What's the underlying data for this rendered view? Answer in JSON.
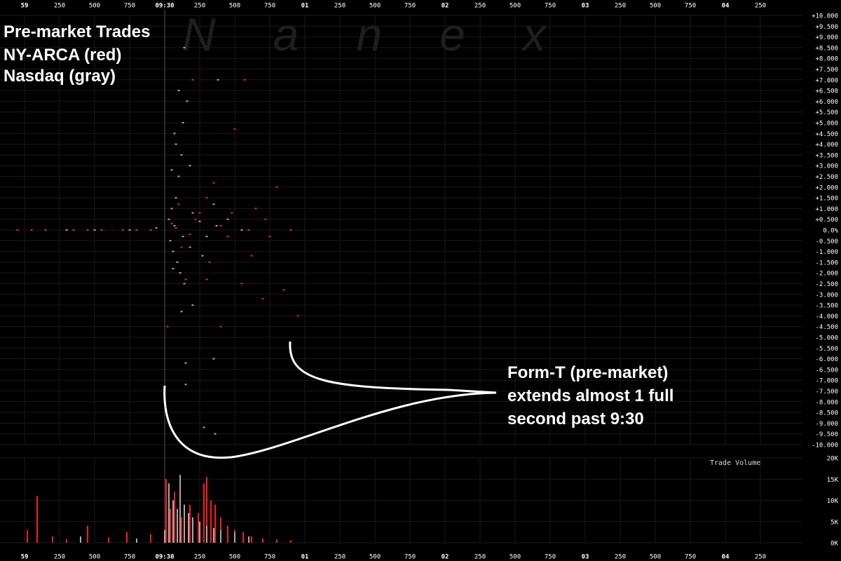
{
  "chart_data": [
    {
      "type": "scatter",
      "title": "Pre-market Trades",
      "watermark": "Nanex",
      "annotation": [
        "Form-T (pre-market)",
        "extends almost 1 full",
        "second past 9:30"
      ],
      "grid": true,
      "xlim": [
        -1.175,
        4.55
      ],
      "xticks": [
        {
          "value": -1,
          "label": "59"
        },
        {
          "value": -0.75,
          "label": "250"
        },
        {
          "value": -0.5,
          "label": "500"
        },
        {
          "value": -0.25,
          "label": "750"
        },
        {
          "value": 0,
          "label": "09:30"
        },
        {
          "value": 0.25,
          "label": "250"
        },
        {
          "value": 0.5,
          "label": "500"
        },
        {
          "value": 0.75,
          "label": "750"
        },
        {
          "value": 1,
          "label": "01"
        },
        {
          "value": 1.25,
          "label": "250"
        },
        {
          "value": 1.5,
          "label": "500"
        },
        {
          "value": 1.75,
          "label": "750"
        },
        {
          "value": 2,
          "label": "02"
        },
        {
          "value": 2.25,
          "label": "250"
        },
        {
          "value": 2.5,
          "label": "500"
        },
        {
          "value": 2.75,
          "label": "750"
        },
        {
          "value": 3,
          "label": "03"
        },
        {
          "value": 3.25,
          "label": "250"
        },
        {
          "value": 3.5,
          "label": "500"
        },
        {
          "value": 3.75,
          "label": "750"
        },
        {
          "value": 4,
          "label": "04"
        },
        {
          "value": 4.25,
          "label": "250"
        }
      ],
      "ylim": [
        -10,
        10
      ],
      "yticks": [
        {
          "value": 10,
          "label": "+10.000"
        },
        {
          "value": 9.5,
          "label": "+9.500"
        },
        {
          "value": 9,
          "label": "+9.000"
        },
        {
          "value": 8.5,
          "label": "+8.500"
        },
        {
          "value": 8,
          "label": "+8.000"
        },
        {
          "value": 7.5,
          "label": "+7.500"
        },
        {
          "value": 7,
          "label": "+7.000"
        },
        {
          "value": 6.5,
          "label": "+6.500"
        },
        {
          "value": 6,
          "label": "+6.000"
        },
        {
          "value": 5.5,
          "label": "+5.500"
        },
        {
          "value": 5,
          "label": "+5.000"
        },
        {
          "value": 4.5,
          "label": "+4.500"
        },
        {
          "value": 4,
          "label": "+4.000"
        },
        {
          "value": 3.5,
          "label": "+3.500"
        },
        {
          "value": 3,
          "label": "+3.000"
        },
        {
          "value": 2.5,
          "label": "+2.500"
        },
        {
          "value": 2,
          "label": "+2.000"
        },
        {
          "value": 1.5,
          "label": "+1.500"
        },
        {
          "value": 1,
          "label": "+1.000"
        },
        {
          "value": 0.5,
          "label": "+0.500"
        },
        {
          "value": 0,
          "label": "0.0%"
        },
        {
          "value": -0.5,
          "label": "-0.500"
        },
        {
          "value": -1,
          "label": "-1.000"
        },
        {
          "value": -1.5,
          "label": "-1.500"
        },
        {
          "value": -2,
          "label": "-2.000"
        },
        {
          "value": -2.5,
          "label": "-2.500"
        },
        {
          "value": -3,
          "label": "-3.000"
        },
        {
          "value": -3.5,
          "label": "-3.500"
        },
        {
          "value": -4,
          "label": "-4.000"
        },
        {
          "value": -4.5,
          "label": "-4.500"
        },
        {
          "value": -5,
          "label": "-5.000"
        },
        {
          "value": -5.5,
          "label": "-5.500"
        },
        {
          "value": -6,
          "label": "-6.000"
        },
        {
          "value": -6.5,
          "label": "-6.500"
        },
        {
          "value": -7,
          "label": "-7.000"
        },
        {
          "value": -7.5,
          "label": "-7.500"
        },
        {
          "value": -8,
          "label": "-8.000"
        },
        {
          "value": -8.5,
          "label": "-8.500"
        },
        {
          "value": -9,
          "label": "-9.000"
        },
        {
          "value": -9.5,
          "label": "-9.500"
        },
        {
          "value": -10,
          "label": "-10.000"
        }
      ],
      "series": [
        {
          "name": "NY-ARCA (red)",
          "color": "#ff1a1a",
          "x": [
            -1.05,
            -0.95,
            -0.85,
            -0.65,
            -0.55,
            -0.45,
            -0.3,
            -0.2,
            -0.1,
            0.02,
            0.05,
            0.08,
            0.1,
            0.12,
            0.15,
            0.18,
            0.2,
            0.22,
            0.25,
            0.3,
            0.3,
            0.32,
            0.35,
            0.4,
            0.4,
            0.45,
            0.48,
            0.5,
            0.55,
            0.57,
            0.6,
            0.62,
            0.65,
            0.7,
            0.72,
            0.75,
            0.8,
            0.85,
            0.9,
            0.95
          ],
          "values": [
            0,
            0,
            0,
            0,
            0,
            0,
            0,
            0,
            0,
            -4.5,
            0.3,
            0.1,
            1.2,
            -0.8,
            -2.3,
            -0.2,
            7,
            0.5,
            0.8,
            1.5,
            -2.3,
            -1.5,
            2.2,
            0.2,
            -4.5,
            -0.3,
            0.8,
            4.7,
            -2.5,
            7,
            0,
            -1.2,
            1,
            -3.2,
            0.5,
            -0.3,
            2,
            -2.8,
            0,
            -4
          ]
        },
        {
          "name": "Nasdaq (gray)",
          "color": "#a8a8a8",
          "x": [
            -0.7,
            -0.5,
            -0.25,
            -0.06,
            0.03,
            0.04,
            0.05,
            0.05,
            0.06,
            0.06,
            0.07,
            0.07,
            0.08,
            0.08,
            0.09,
            0.1,
            0.1,
            0.11,
            0.12,
            0.12,
            0.13,
            0.13,
            0.14,
            0.14,
            0.15,
            0.15,
            0.16,
            0.18,
            0.18,
            0.2,
            0.2,
            0.25,
            0.27,
            0.28,
            0.3,
            0.35,
            0.35,
            0.36,
            0.37,
            0.38,
            0.45,
            0.55
          ],
          "values": [
            0,
            0,
            0,
            0.1,
            0.5,
            -0.5,
            1,
            2.8,
            -1,
            -1.8,
            0.2,
            4.5,
            1.5,
            4,
            -1.5,
            2.5,
            6.5,
            -2,
            3.5,
            -3.8,
            -0.3,
            5,
            8.5,
            -2.5,
            -7.2,
            -6.2,
            6,
            3,
            -0.8,
            0.8,
            -3.5,
            0.4,
            -1.2,
            -9.2,
            -0.3,
            1.2,
            -6,
            -9.5,
            0.2,
            7,
            0.5,
            0
          ]
        }
      ]
    },
    {
      "type": "bar",
      "y_label": "Trade Volume",
      "grid": true,
      "xlim": [
        -1.175,
        4.55
      ],
      "xticks": [
        {
          "value": -1,
          "label": "59"
        },
        {
          "value": -0.75,
          "label": "250"
        },
        {
          "value": -0.5,
          "label": "500"
        },
        {
          "value": -0.25,
          "label": "750"
        },
        {
          "value": 0,
          "label": "09:30"
        },
        {
          "value": 0.25,
          "label": "250"
        },
        {
          "value": 0.5,
          "label": "500"
        },
        {
          "value": 0.75,
          "label": "750"
        },
        {
          "value": 1,
          "label": "01"
        },
        {
          "value": 1.25,
          "label": "250"
        },
        {
          "value": 1.5,
          "label": "500"
        },
        {
          "value": 1.75,
          "label": "750"
        },
        {
          "value": 2,
          "label": "02"
        },
        {
          "value": 2.25,
          "label": "250"
        },
        {
          "value": 2.5,
          "label": "500"
        },
        {
          "value": 2.75,
          "label": "750"
        },
        {
          "value": 3,
          "label": "03"
        },
        {
          "value": 3.25,
          "label": "250"
        },
        {
          "value": 3.5,
          "label": "500"
        },
        {
          "value": 3.75,
          "label": "750"
        },
        {
          "value": 4,
          "label": "04"
        },
        {
          "value": 4.25,
          "label": "250"
        }
      ],
      "ylim": [
        0,
        20000
      ],
      "yticks": [
        {
          "value": 0,
          "label": "0K"
        },
        {
          "value": 5000,
          "label": "5K"
        },
        {
          "value": 10000,
          "label": "10K"
        },
        {
          "value": 15000,
          "label": "15K"
        },
        {
          "value": 20000,
          "label": "20K"
        }
      ],
      "series": [
        {
          "name": "NY-ARCA",
          "color": "#ff1a1a",
          "x": [
            -0.98,
            -0.91,
            -0.8,
            -0.7,
            -0.55,
            -0.4,
            -0.27,
            -0.1,
            0.01,
            0.04,
            0.07,
            0.12,
            0.18,
            0.24,
            0.28,
            0.3,
            0.33,
            0.36,
            0.4,
            0.45,
            0.5,
            0.56,
            0.62,
            0.7,
            0.8,
            0.9
          ],
          "values": [
            3000,
            11000,
            1500,
            800,
            4000,
            1200,
            2500,
            2000,
            15000,
            8000,
            12000,
            6000,
            9000,
            7000,
            14000,
            15500,
            10000,
            9000,
            6000,
            4000,
            3000,
            2500,
            1500,
            1000,
            800,
            600
          ]
        },
        {
          "name": "Nasdaq",
          "color": "#a8a8a8",
          "x": [
            -0.6,
            -0.2,
            0,
            0.03,
            0.06,
            0.09,
            0.11,
            0.14,
            0.17,
            0.2,
            0.25,
            0.3,
            0.35,
            0.4,
            0.5,
            0.6
          ],
          "values": [
            1500,
            1000,
            3000,
            14000,
            10000,
            8000,
            16000,
            9000,
            7000,
            6000,
            5000,
            4000,
            3500,
            3000,
            2500,
            1500
          ]
        }
      ]
    }
  ]
}
